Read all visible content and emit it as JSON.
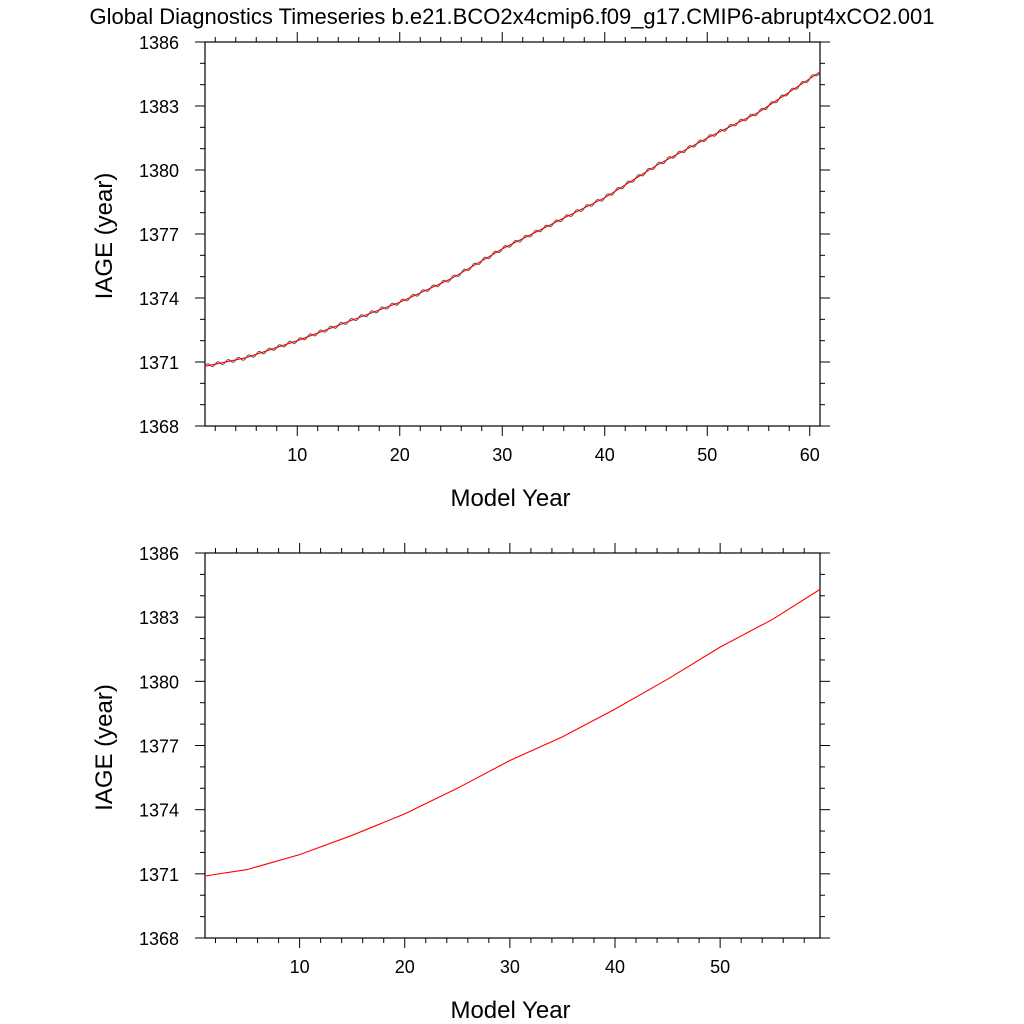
{
  "title": "Global Diagnostics Timeseries b.e21.BCO2x4cmip6.f09_g17.CMIP6-abrupt4xCO2.001",
  "colors": {
    "series_monthly": "#555555",
    "series_annual": "#ff0000",
    "axes": "#000000"
  },
  "chart_data": [
    {
      "type": "line",
      "xlabel": "Model Year",
      "ylabel": "IAGE (year)",
      "xlim": [
        1,
        61
      ],
      "ylim": [
        1368,
        1386
      ],
      "xticks": [
        10,
        20,
        30,
        40,
        50,
        60
      ],
      "xtick_labels": [
        "10",
        "20",
        "30",
        "40",
        "50",
        "60"
      ],
      "yticks": [
        1368,
        1371,
        1374,
        1377,
        1380,
        1383,
        1386
      ],
      "ytick_labels": [
        "1368",
        "1371",
        "1374",
        "1377",
        "1380",
        "1383",
        "1386"
      ],
      "grid": false,
      "series": [
        {
          "style": "monthly",
          "color": "#555555",
          "x": [
            1,
            5,
            10,
            15,
            20,
            25,
            30,
            35,
            40,
            45,
            50,
            55,
            61
          ],
          "y": [
            1370.8,
            1371.2,
            1372.0,
            1372.9,
            1373.8,
            1374.9,
            1376.3,
            1377.5,
            1378.7,
            1380.2,
            1381.5,
            1382.7,
            1384.6
          ]
        },
        {
          "style": "annual",
          "color": "#ff0000",
          "x": [
            1,
            5,
            10,
            15,
            20,
            25,
            30,
            35,
            40,
            45,
            50,
            55,
            61
          ],
          "y": [
            1370.8,
            1371.2,
            1372.0,
            1372.9,
            1373.8,
            1374.9,
            1376.3,
            1377.5,
            1378.7,
            1380.2,
            1381.5,
            1382.7,
            1384.6
          ]
        }
      ]
    },
    {
      "type": "line",
      "xlabel": "Model Year",
      "ylabel": "IAGE (year)",
      "xlim": [
        1,
        59.5
      ],
      "ylim": [
        1368,
        1386
      ],
      "xticks": [
        10,
        20,
        30,
        40,
        50
      ],
      "xtick_labels": [
        "10",
        "20",
        "30",
        "40",
        "50"
      ],
      "yticks": [
        1368,
        1371,
        1374,
        1377,
        1380,
        1383,
        1386
      ],
      "ytick_labels": [
        "1368",
        "1371",
        "1374",
        "1377",
        "1380",
        "1383",
        "1386"
      ],
      "grid": false,
      "series": [
        {
          "style": "annual",
          "color": "#ff0000",
          "x": [
            1,
            5,
            10,
            15,
            20,
            25,
            30,
            35,
            40,
            45,
            50,
            55,
            59.5
          ],
          "y": [
            1370.9,
            1371.2,
            1371.9,
            1372.8,
            1373.8,
            1375.0,
            1376.3,
            1377.4,
            1378.7,
            1380.1,
            1381.6,
            1382.9,
            1384.3
          ]
        }
      ]
    }
  ]
}
